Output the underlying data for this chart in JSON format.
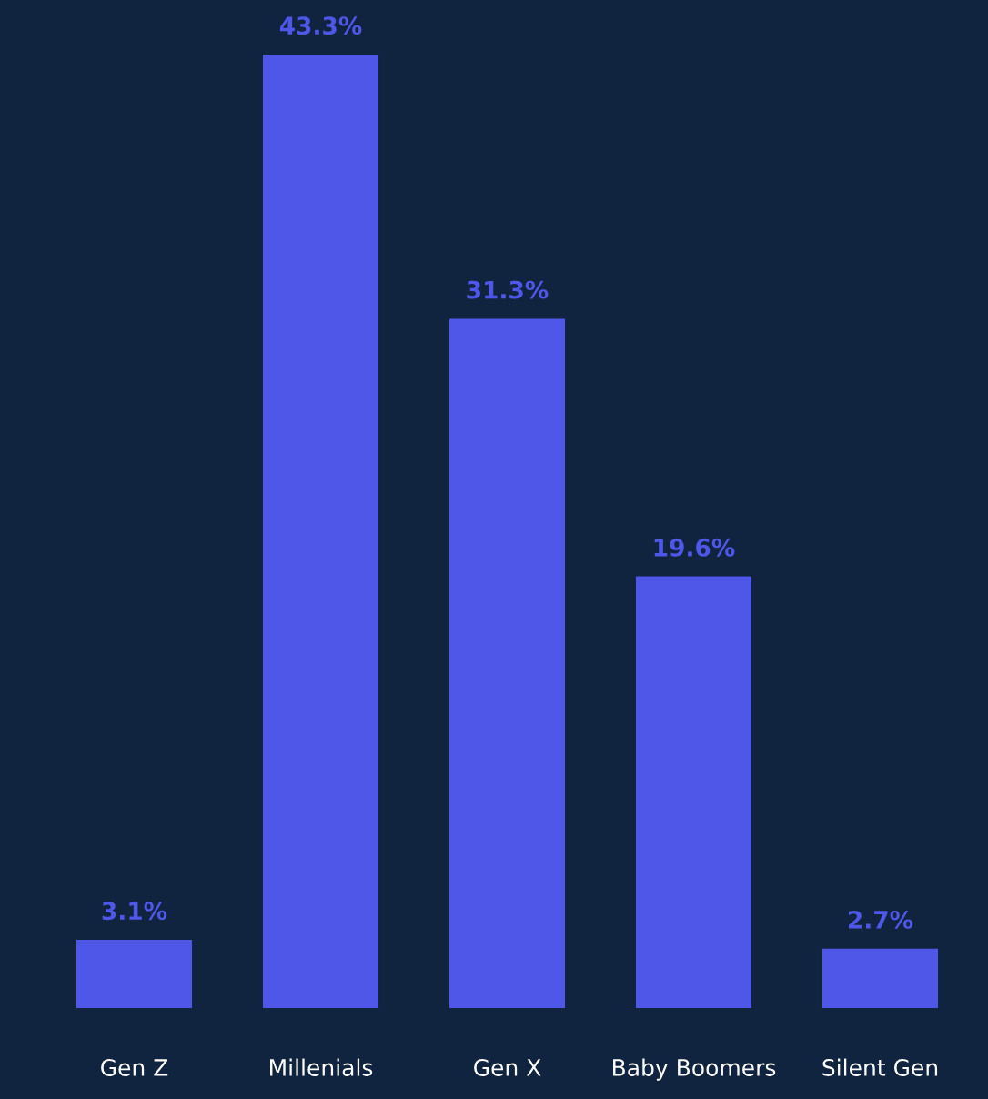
{
  "chart_data": {
    "type": "bar",
    "categories": [
      "Gen Z",
      "Millenials",
      "Gen X",
      "Baby Boomers",
      "Silent Gen"
    ],
    "values": [
      3.1,
      43.3,
      31.3,
      19.6,
      2.7
    ],
    "value_labels": [
      "3.1%",
      "43.3%",
      "31.3%",
      "19.6%",
      "2.7%"
    ],
    "color": "#4f57e8",
    "grid": false,
    "legend": false
  }
}
